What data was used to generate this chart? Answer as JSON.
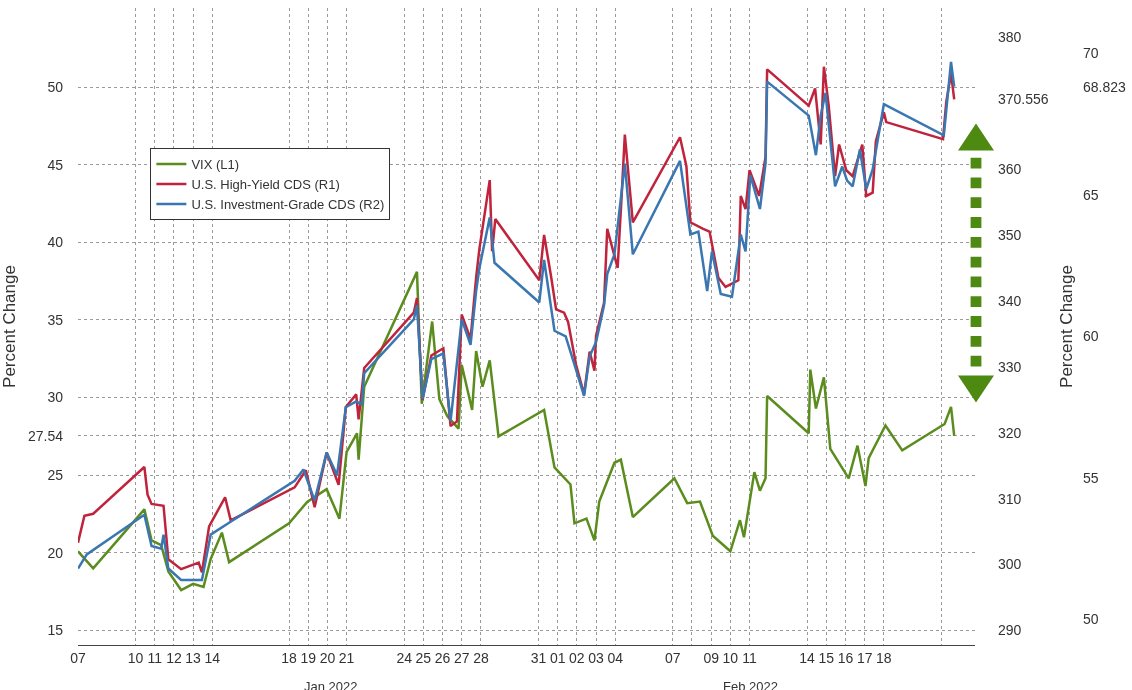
{
  "chart_data": {
    "type": "line",
    "ylabel": "Percent Change",
    "y2label": "Percent Change",
    "annotations": [
      "Jan 2022",
      "Feb 2022"
    ],
    "xlim": [
      "2022-01-07",
      "2022-02-22T18:00"
    ],
    "xticks": [
      {
        "value": "2022-01-07",
        "label": "07"
      },
      {
        "value": "2022-01-10",
        "label": "10"
      },
      {
        "value": "2022-01-11",
        "label": "11"
      },
      {
        "value": "2022-01-12",
        "label": "12"
      },
      {
        "value": "2022-01-13",
        "label": "13"
      },
      {
        "value": "2022-01-14",
        "label": "14"
      },
      {
        "value": "2022-01-18",
        "label": "18"
      },
      {
        "value": "2022-01-19",
        "label": "19"
      },
      {
        "value": "2022-01-20",
        "label": "20"
      },
      {
        "value": "2022-01-21",
        "label": "21"
      },
      {
        "value": "2022-01-24",
        "label": "24"
      },
      {
        "value": "2022-01-25",
        "label": "25"
      },
      {
        "value": "2022-01-26",
        "label": "26"
      },
      {
        "value": "2022-01-27",
        "label": "27"
      },
      {
        "value": "2022-01-28",
        "label": "28"
      },
      {
        "value": "2022-01-31",
        "label": "31"
      },
      {
        "value": "2022-02-01",
        "label": "01"
      },
      {
        "value": "2022-02-02",
        "label": "02"
      },
      {
        "value": "2022-02-03",
        "label": "03"
      },
      {
        "value": "2022-02-04",
        "label": "04"
      },
      {
        "value": "2022-02-07",
        "label": "07"
      },
      {
        "value": "2022-02-08",
        "label": null
      },
      {
        "value": "2022-02-09",
        "label": "09"
      },
      {
        "value": "2022-02-10",
        "label": "10"
      },
      {
        "value": "2022-02-11",
        "label": "11"
      },
      {
        "value": "2022-02-14",
        "label": "14"
      },
      {
        "value": "2022-02-15",
        "label": "15"
      },
      {
        "value": "2022-02-16",
        "label": "16"
      },
      {
        "value": "2022-02-17",
        "label": "17"
      },
      {
        "value": "2022-02-18",
        "label": "18"
      },
      {
        "value": "2022-02-21",
        "label": null
      }
    ],
    "ylim": [
      14.06,
      55.1
    ],
    "yticks": [
      15,
      20,
      25,
      27.54,
      30,
      35,
      40,
      45,
      50
    ],
    "y2lim": [
      287.8,
      384.4
    ],
    "y2ticks": [
      290,
      300,
      310,
      320,
      330,
      340,
      350,
      360,
      370.556,
      380
    ],
    "y3lim": [
      49.1,
      71.6
    ],
    "y3ticks": [
      50,
      55,
      60,
      65,
      68.823,
      70
    ],
    "grid": true,
    "legend": "top left",
    "series": [
      {
        "name": "VIX (L1)",
        "color": "#5b8c1e",
        "x": [
          "2022-01-07T00:00",
          "2022-01-07T19:00",
          "2022-01-10T11:00",
          "2022-01-10T20:00",
          "2022-01-11T08:00",
          "2022-01-11T17:00",
          "2022-01-12T09:00",
          "2022-01-13T00:00",
          "2022-01-13T13:00",
          "2022-01-13T22:00",
          "2022-01-14T12:00",
          "2022-01-14T21:00",
          "2022-01-18T00:00",
          "2022-01-18T23:00",
          "2022-01-19T23:00",
          "2022-01-20T15:00",
          "2022-01-21T00:00",
          "2022-01-21T13:00",
          "2022-01-21T15:00",
          "2022-01-21T22:00",
          "2022-01-24T16:00",
          "2022-01-24T22:00",
          "2022-01-25T11:00",
          "2022-01-25T20:00",
          "2022-01-26T06:00",
          "2022-01-26T20:00",
          "2022-01-27T00:00",
          "2022-01-27T13:00",
          "2022-01-27T18:00",
          "2022-01-28T02:00",
          "2022-01-28T11:00",
          "2022-01-28T22:00",
          "2022-01-31T07:00",
          "2022-01-31T20:00",
          "2022-02-01T16:00",
          "2022-02-01T21:00",
          "2022-02-02T12:00",
          "2022-02-02T22:00",
          "2022-02-03T04:00",
          "2022-02-03T23:00",
          "2022-02-04T07:00",
          "2022-02-04T22:00",
          "2022-02-07T02:00",
          "2022-02-07T18:00",
          "2022-02-08T10:00",
          "2022-02-09T02:00",
          "2022-02-10T00:00",
          "2022-02-10T12:00",
          "2022-02-10T17:00",
          "2022-02-11T06:00",
          "2022-02-11T13:00",
          "2022-02-11T20:00",
          "2022-02-11T22:00",
          "2022-02-14T02:00",
          "2022-02-14T04:00",
          "2022-02-14T11:00",
          "2022-02-14T21:00",
          "2022-02-15T05:00",
          "2022-02-16T04:00",
          "2022-02-16T15:00",
          "2022-02-17T01:00",
          "2022-02-17T05:00",
          "2022-02-17T16:00",
          "2022-02-18T02:00",
          "2022-02-18T23:00",
          "2022-02-21T04:00",
          "2022-02-21T12:00",
          "2022-02-21T16:00"
        ],
        "values": [
          20.1,
          19.0,
          22.8,
          20.8,
          20.5,
          18.8,
          17.6,
          18.0,
          17.8,
          19.6,
          21.3,
          19.4,
          21.9,
          23.3,
          24.1,
          22.2,
          26.5,
          27.7,
          26.0,
          30.7,
          38.1,
          29.6,
          34.9,
          29.9,
          28.8,
          28.0,
          32.1,
          29.2,
          33.0,
          30.7,
          32.4,
          27.5,
          29.2,
          25.5,
          24.4,
          21.9,
          22.2,
          20.8,
          23.3,
          25.8,
          26.0,
          22.3,
          24.8,
          23.2,
          23.3,
          21.1,
          20.1,
          22.1,
          21.0,
          25.2,
          24.0,
          24.8,
          30.1,
          27.7,
          31.8,
          29.3,
          31.3,
          26.7,
          24.8,
          26.9,
          24.3,
          26.1,
          27.2,
          28.2,
          26.6,
          28.3,
          29.4,
          27.54
        ]
      },
      {
        "name": "U.S. High-Yield CDS (R1)",
        "color": "#c0233c",
        "axis": "y2",
        "x": [
          "2022-01-07T00:00",
          "2022-01-07T08:00",
          "2022-01-07T19:00",
          "2022-01-10T11:00",
          "2022-01-10T15:00",
          "2022-01-10T20:00",
          "2022-01-11T11:00",
          "2022-01-11T17:00",
          "2022-01-12T09:00",
          "2022-01-13T07:00",
          "2022-01-13T11:00",
          "2022-01-13T20:00",
          "2022-01-14T16:00",
          "2022-01-14T23:00",
          "2022-01-18T07:00",
          "2022-01-18T21:00",
          "2022-01-19T08:00",
          "2022-01-19T23:00",
          "2022-01-20T14:00",
          "2022-01-20T23:00",
          "2022-01-21T12:00",
          "2022-01-21T15:00",
          "2022-01-21T22:00",
          "2022-01-24T12:00",
          "2022-01-24T16:00",
          "2022-01-24T23:00",
          "2022-01-25T10:00",
          "2022-01-26T01:00",
          "2022-01-26T10:00",
          "2022-01-26T18:00",
          "2022-01-27T00:00",
          "2022-01-27T11:00",
          "2022-01-27T18:00",
          "2022-01-27T22:00",
          "2022-01-28T11:00",
          "2022-01-28T14:00",
          "2022-01-28T18:00",
          "2022-01-31T01:00",
          "2022-01-31T07:00",
          "2022-01-31T16:00",
          "2022-01-31T22:00",
          "2022-02-01T08:00",
          "2022-02-01T13:00",
          "2022-02-01T23:00",
          "2022-02-02T09:00",
          "2022-02-02T16:00",
          "2022-02-02T22:00",
          "2022-02-03T00:00",
          "2022-02-03T10:00",
          "2022-02-03T14:00",
          "2022-02-04T03:00",
          "2022-02-04T08:00",
          "2022-02-04T12:00",
          "2022-02-04T22:00",
          "2022-02-07T09:00",
          "2022-02-07T17:00",
          "2022-02-07T22:00",
          "2022-02-08T14:00",
          "2022-02-08T22:00",
          "2022-02-09T09:00",
          "2022-02-09T18:00",
          "2022-02-10T10:00",
          "2022-02-10T13:00",
          "2022-02-10T19:00",
          "2022-02-11T00:00",
          "2022-02-11T12:00",
          "2022-02-11T20:00",
          "2022-02-11T22:00",
          "2022-02-14T02:00",
          "2022-02-14T10:00",
          "2022-02-14T17:00",
          "2022-02-14T21:00",
          "2022-02-15T03:00",
          "2022-02-15T11:00",
          "2022-02-15T16:00",
          "2022-02-16T01:00",
          "2022-02-16T09:00",
          "2022-02-16T21:00",
          "2022-02-17T02:00",
          "2022-02-17T10:00",
          "2022-02-17T14:00",
          "2022-02-18T00:00",
          "2022-02-18T03:00",
          "2022-02-21T02:00",
          "2022-02-21T06:00",
          "2022-02-21T12:00",
          "2022-02-21T16:00"
        ],
        "values": [
          303.3,
          307.4,
          307.7,
          314.8,
          310.6,
          309.2,
          308.9,
          300.8,
          299.3,
          300.3,
          298.8,
          305.8,
          310.2,
          306.7,
          311.7,
          314.3,
          308.7,
          317.0,
          312.1,
          323.9,
          325.8,
          322.0,
          329.8,
          338.2,
          340.4,
          325.0,
          331.7,
          332.8,
          321.0,
          321.7,
          337.9,
          334.2,
          343.5,
          347.8,
          358.3,
          347.5,
          352.4,
          343.1,
          350.0,
          343.5,
          338.7,
          338.2,
          336.8,
          330.3,
          325.8,
          332.3,
          329.4,
          334.7,
          339.7,
          350.9,
          345.0,
          355.9,
          365.2,
          351.9,
          364.8,
          360.4,
          351.9,
          350.9,
          350.5,
          343.5,
          342.1,
          343.1,
          355.9,
          353.9,
          359.8,
          355.9,
          361.8,
          375.1,
          369.6,
          372.2,
          363.7,
          375.5,
          369.6,
          358.9,
          363.7,
          359.8,
          358.9,
          363.7,
          355.9,
          356.4,
          364.2,
          368.6,
          367.1,
          364.5,
          370.1,
          374.5,
          370.556
        ]
      },
      {
        "name": "U.S. Investment-Grade CDS (R2)",
        "color": "#3a76b0",
        "axis": "y3",
        "x": [
          "2022-01-07T00:00",
          "2022-01-07T11:00",
          "2022-01-10T11:00",
          "2022-01-10T20:00",
          "2022-01-11T08:00",
          "2022-01-11T11:00",
          "2022-01-11T17:00",
          "2022-01-12T09:00",
          "2022-01-13T11:00",
          "2022-01-13T22:00",
          "2022-01-14T20:00",
          "2022-01-18T07:00",
          "2022-01-18T18:00",
          "2022-01-19T08:00",
          "2022-01-19T23:00",
          "2022-01-20T12:00",
          "2022-01-20T23:00",
          "2022-01-21T12:00",
          "2022-01-21T19:00",
          "2022-01-21T22:00",
          "2022-01-24T12:00",
          "2022-01-24T16:00",
          "2022-01-24T23:00",
          "2022-01-25T10:00",
          "2022-01-26T01:00",
          "2022-01-26T10:00",
          "2022-01-27T00:00",
          "2022-01-27T11:00",
          "2022-01-27T18:00",
          "2022-01-27T22:00",
          "2022-01-28T11:00",
          "2022-01-28T17:00",
          "2022-01-31T01:00",
          "2022-01-31T07:00",
          "2022-01-31T20:00",
          "2022-02-01T10:00",
          "2022-02-01T21:00",
          "2022-02-02T09:00",
          "2022-02-02T16:00",
          "2022-02-03T00:00",
          "2022-02-03T10:00",
          "2022-02-03T14:00",
          "2022-02-03T23:00",
          "2022-02-04T12:00",
          "2022-02-04T22:00",
          "2022-02-07T09:00",
          "2022-02-07T22:00",
          "2022-02-08T08:00",
          "2022-02-08T19:00",
          "2022-02-09T01:00",
          "2022-02-09T12:00",
          "2022-02-10T02:00",
          "2022-02-10T13:00",
          "2022-02-10T19:00",
          "2022-02-11T01:00",
          "2022-02-11T13:00",
          "2022-02-11T20:00",
          "2022-02-11T22:00",
          "2022-02-14T02:00",
          "2022-02-14T11:00",
          "2022-02-14T17:00",
          "2022-02-14T23:00",
          "2022-02-15T11:00",
          "2022-02-15T20:00",
          "2022-02-16T02:00",
          "2022-02-16T09:00",
          "2022-02-16T18:00",
          "2022-02-17T02:00",
          "2022-02-17T10:00",
          "2022-02-18T00:00",
          "2022-02-21T03:00",
          "2022-02-21T12:00",
          "2022-02-21T16:00"
        ],
        "values": [
          51.8,
          52.3,
          53.7,
          52.6,
          52.5,
          53.0,
          51.8,
          51.4,
          51.4,
          53.0,
          53.4,
          54.9,
          55.3,
          54.2,
          55.9,
          55.1,
          57.5,
          57.7,
          57.6,
          58.7,
          60.6,
          61.1,
          57.8,
          59.2,
          59.4,
          57.0,
          60.6,
          59.7,
          61.6,
          62.4,
          64.2,
          62.6,
          61.2,
          62.7,
          60.2,
          60.0,
          59.0,
          57.9,
          59.3,
          59.8,
          61.1,
          62.2,
          62.9,
          66.1,
          62.9,
          66.2,
          63.6,
          63.7,
          61.6,
          63.0,
          61.5,
          61.4,
          63.6,
          63.0,
          65.7,
          64.5,
          66.1,
          69.0,
          67.8,
          66.4,
          67.8,
          68.6,
          65.3,
          66.0,
          65.5,
          65.3,
          66.6,
          65.2,
          65.9,
          68.2,
          67.1,
          69.7,
          68.823
        ]
      }
    ]
  }
}
